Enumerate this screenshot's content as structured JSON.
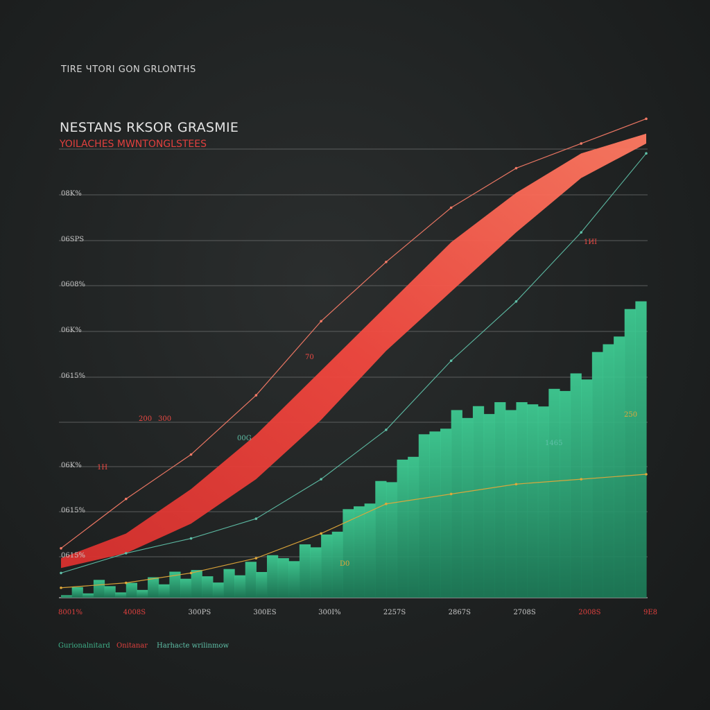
{
  "header": {
    "top_label": "TIRE ЧТORI GON GRLONTHS",
    "title": "NESTANS RKSOR GRASMIE",
    "subtitle": "YOILACHES MWNTONGLSTEES"
  },
  "colors": {
    "background": "#1f2222",
    "red": "#ee4a44",
    "red_light": "#f47a66",
    "green": "#3fcf95",
    "green_dark": "#1f8f66",
    "teal_line": "#5fc0a8",
    "orange_line": "#e0a83a",
    "grid": "#6a6c6c"
  },
  "chart_data": {
    "type": "area",
    "x_ticks": [
      "8001%",
      "4008S",
      "300PS",
      "300ES",
      "300I%",
      "2257S",
      "2867S",
      "2708S",
      "2008S",
      "9E8"
    ],
    "y_ticks": [
      "08K%",
      "06SPS",
      "0608%",
      "06K%",
      "0615%",
      "06K%",
      "0615%",
      "0615%"
    ],
    "annotations": [
      "200",
      "300",
      "00G",
      "1ИI",
      "1H",
      "1465",
      "250",
      "70",
      "D0"
    ],
    "legend": [
      "Gurionalnitard",
      "Onitanar",
      "Harhacte wrilinmow"
    ],
    "grid": true,
    "ylim": [
      0,
      100
    ],
    "x": [
      0,
      1,
      2,
      3,
      4,
      5,
      6,
      7,
      8,
      9
    ],
    "series": [
      {
        "values_upper": [
          8,
          13,
          22,
          33,
          46,
          59,
          72,
          82,
          90,
          94
        ],
        "values_lower": [
          6,
          9,
          15,
          24,
          36,
          50,
          62,
          74,
          85,
          92
        ]
      },
      {
        "values": [
          1,
          3,
          4,
          6,
          12,
          25,
          38,
          38,
          45,
          64
        ]
      },
      {
        "values": [
          10,
          20,
          29,
          41,
          56,
          68,
          79,
          87,
          92,
          97
        ]
      },
      {
        "values": [
          5,
          9,
          12,
          16,
          24,
          34,
          48,
          60,
          74,
          90
        ]
      },
      {
        "values": [
          2,
          3,
          5,
          8,
          13,
          19,
          21,
          23,
          24,
          25
        ]
      }
    ]
  }
}
